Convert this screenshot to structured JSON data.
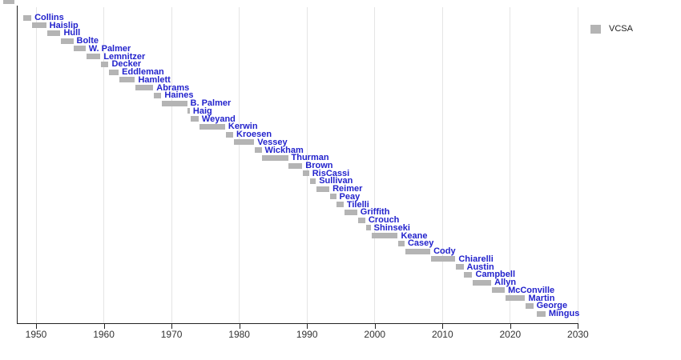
{
  "chart_data": {
    "type": "bar",
    "variant": "timeline-gantt",
    "title": "",
    "xlabel": "",
    "ylabel": "",
    "grid": true,
    "legend_position": "top-right",
    "legend": [
      {
        "label": "VCSA",
        "color": "#b4b4b4"
      }
    ],
    "x_ticks": [
      1950,
      1960,
      1970,
      1980,
      1990,
      2000,
      2010,
      2020,
      2030
    ],
    "x_range": [
      1947.2,
      2030
    ],
    "bar_color": "#b4b4b4",
    "label_color": "#2222cc",
    "bars": [
      {
        "name": "Collins",
        "start": 1948.1,
        "end": 1949.3
      },
      {
        "name": "Haislip",
        "start": 1949.4,
        "end": 1951.5
      },
      {
        "name": "Hull",
        "start": 1951.6,
        "end": 1953.6
      },
      {
        "name": "Bolte",
        "start": 1953.7,
        "end": 1955.5
      },
      {
        "name": "W. Palmer",
        "start": 1955.6,
        "end": 1957.3
      },
      {
        "name": "Lemnitzer",
        "start": 1957.4,
        "end": 1959.5
      },
      {
        "name": "Decker",
        "start": 1959.6,
        "end": 1960.7
      },
      {
        "name": "Eddleman",
        "start": 1960.8,
        "end": 1962.2
      },
      {
        "name": "Hamlett",
        "start": 1962.3,
        "end": 1964.6
      },
      {
        "name": "Abrams",
        "start": 1964.7,
        "end": 1967.3
      },
      {
        "name": "Haines",
        "start": 1967.4,
        "end": 1968.5
      },
      {
        "name": "B. Palmer",
        "start": 1968.6,
        "end": 1972.3
      },
      {
        "name": "Haig",
        "start": 1972.4,
        "end": 1972.7
      },
      {
        "name": "Weyand",
        "start": 1972.8,
        "end": 1974.0
      },
      {
        "name": "Kerwin",
        "start": 1974.1,
        "end": 1977.9
      },
      {
        "name": "Kroesen",
        "start": 1978.0,
        "end": 1979.1
      },
      {
        "name": "Vessey",
        "start": 1979.2,
        "end": 1982.2
      },
      {
        "name": "Wickham",
        "start": 1982.3,
        "end": 1983.3
      },
      {
        "name": "Thurman",
        "start": 1983.4,
        "end": 1987.2
      },
      {
        "name": "Brown",
        "start": 1987.3,
        "end": 1989.3
      },
      {
        "name": "RisCassi",
        "start": 1989.4,
        "end": 1990.3
      },
      {
        "name": "Sullivan",
        "start": 1990.4,
        "end": 1991.3
      },
      {
        "name": "Reimer",
        "start": 1991.4,
        "end": 1993.3
      },
      {
        "name": "Peay",
        "start": 1993.4,
        "end": 1994.3
      },
      {
        "name": "Tilelli",
        "start": 1994.4,
        "end": 1995.4
      },
      {
        "name": "Griffith",
        "start": 1995.5,
        "end": 1997.4
      },
      {
        "name": "Crouch",
        "start": 1997.5,
        "end": 1998.6
      },
      {
        "name": "Shinseki",
        "start": 1998.7,
        "end": 1999.4
      },
      {
        "name": "Keane",
        "start": 1999.5,
        "end": 2003.4
      },
      {
        "name": "Casey",
        "start": 2003.5,
        "end": 2004.4
      },
      {
        "name": "Cody",
        "start": 2004.5,
        "end": 2008.2
      },
      {
        "name": "Chiarelli",
        "start": 2008.3,
        "end": 2011.9
      },
      {
        "name": "Austin",
        "start": 2012.0,
        "end": 2013.1
      },
      {
        "name": "Campbell",
        "start": 2013.2,
        "end": 2014.4
      },
      {
        "name": "Allyn",
        "start": 2014.5,
        "end": 2017.2
      },
      {
        "name": "McConville",
        "start": 2017.3,
        "end": 2019.2
      },
      {
        "name": "Martin",
        "start": 2019.3,
        "end": 2022.2
      },
      {
        "name": "George",
        "start": 2022.3,
        "end": 2023.4
      },
      {
        "name": "Mingus",
        "start": 2023.9,
        "end": 2025.2
      }
    ]
  },
  "colors": {
    "background": "#ffffff",
    "bar": "#b4b4b4",
    "label": "#2222cc",
    "axis": "#222222",
    "tick_label": "#333333",
    "gridline": "#e5e5e5"
  }
}
